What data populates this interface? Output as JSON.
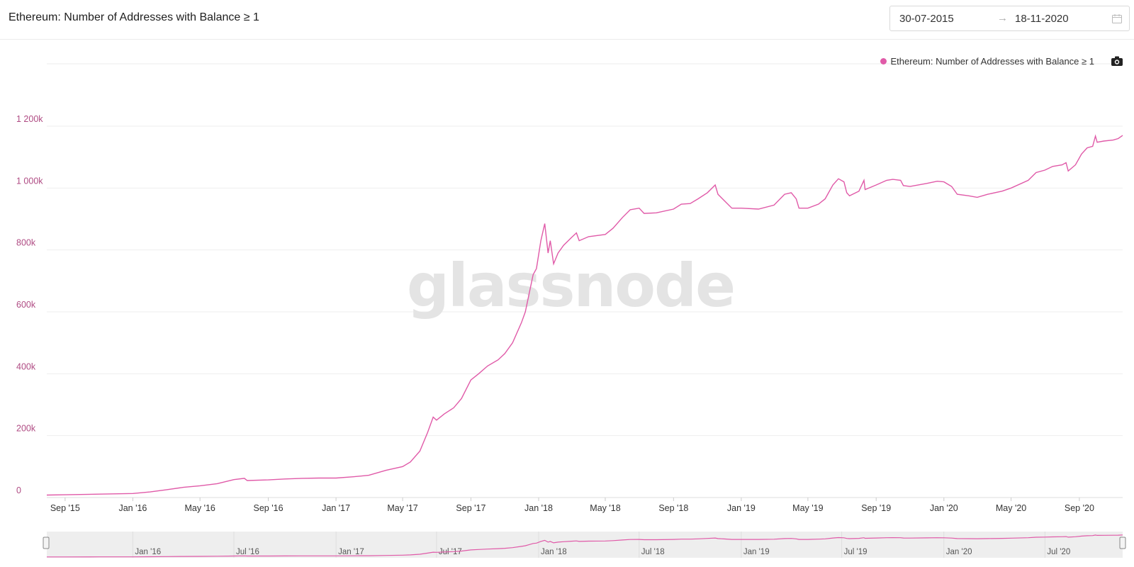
{
  "header": {
    "title": "Ethereum: Number of Addresses with Balance ≥ 1",
    "date_start": "30-07-2015",
    "date_end": "18-11-2020",
    "arrow": "→"
  },
  "legend": {
    "label": "Ethereum: Number of Addresses with Balance ≥ 1",
    "color": "#e05aa8"
  },
  "watermark": "glassnode",
  "icons": {
    "calendar": "calendar-icon",
    "camera": "camera-icon"
  },
  "chart_data": {
    "type": "line",
    "title": "Ethereum: Number of Addresses with Balance ≥ 1",
    "xlabel": "",
    "ylabel": "",
    "ylim": [
      0,
      1200000
    ],
    "grid": true,
    "legend_position": "top-right",
    "y_ticks": [
      {
        "value": 0,
        "label": "0"
      },
      {
        "value": 200000,
        "label": "200k"
      },
      {
        "value": 400000,
        "label": "400k"
      },
      {
        "value": 600000,
        "label": "600k"
      },
      {
        "value": 800000,
        "label": "800k"
      },
      {
        "value": 1000000,
        "label": "1 000k"
      },
      {
        "value": 1200000,
        "label": "1 200k"
      }
    ],
    "x_ticks": [
      {
        "date": "2015-09-01",
        "label": "Sep '15"
      },
      {
        "date": "2016-01-01",
        "label": "Jan '16"
      },
      {
        "date": "2016-05-01",
        "label": "May '16"
      },
      {
        "date": "2016-09-01",
        "label": "Sep '16"
      },
      {
        "date": "2017-01-01",
        "label": "Jan '17"
      },
      {
        "date": "2017-05-01",
        "label": "May '17"
      },
      {
        "date": "2017-09-01",
        "label": "Sep '17"
      },
      {
        "date": "2018-01-01",
        "label": "Jan '18"
      },
      {
        "date": "2018-05-01",
        "label": "May '18"
      },
      {
        "date": "2018-09-01",
        "label": "Sep '18"
      },
      {
        "date": "2019-01-01",
        "label": "Jan '19"
      },
      {
        "date": "2019-05-01",
        "label": "May '19"
      },
      {
        "date": "2019-09-01",
        "label": "Sep '19"
      },
      {
        "date": "2020-01-01",
        "label": "Jan '20"
      },
      {
        "date": "2020-05-01",
        "label": "May '20"
      },
      {
        "date": "2020-09-01",
        "label": "Sep '20"
      }
    ],
    "navigator_ticks": [
      {
        "date": "2016-01-01",
        "label": "Jan '16"
      },
      {
        "date": "2016-07-01",
        "label": "Jul '16"
      },
      {
        "date": "2017-01-01",
        "label": "Jan '17"
      },
      {
        "date": "2017-07-01",
        "label": "Jul '17"
      },
      {
        "date": "2018-01-01",
        "label": "Jan '18"
      },
      {
        "date": "2018-07-01",
        "label": "Jul '18"
      },
      {
        "date": "2019-01-01",
        "label": "Jan '19"
      },
      {
        "date": "2019-07-01",
        "label": "Jul '19"
      },
      {
        "date": "2020-01-01",
        "label": "Jan '20"
      },
      {
        "date": "2020-07-01",
        "label": "Jul '20"
      }
    ],
    "series": [
      {
        "name": "Ethereum: Number of Addresses with Balance ≥ 1",
        "color": "#e05aa8",
        "points": [
          [
            "2015-07-30",
            8000
          ],
          [
            "2015-09-01",
            9000
          ],
          [
            "2015-11-01",
            11000
          ],
          [
            "2016-01-01",
            13000
          ],
          [
            "2016-02-01",
            18000
          ],
          [
            "2016-03-01",
            25000
          ],
          [
            "2016-04-01",
            33000
          ],
          [
            "2016-05-01",
            38000
          ],
          [
            "2016-06-01",
            45000
          ],
          [
            "2016-07-01",
            58000
          ],
          [
            "2016-07-20",
            62000
          ],
          [
            "2016-07-25",
            55000
          ],
          [
            "2016-09-01",
            57000
          ],
          [
            "2016-10-01",
            60000
          ],
          [
            "2016-11-01",
            62000
          ],
          [
            "2016-12-01",
            63000
          ],
          [
            "2017-01-01",
            63000
          ],
          [
            "2017-02-01",
            67000
          ],
          [
            "2017-03-01",
            72000
          ],
          [
            "2017-04-01",
            88000
          ],
          [
            "2017-05-01",
            100000
          ],
          [
            "2017-05-15",
            115000
          ],
          [
            "2017-06-01",
            150000
          ],
          [
            "2017-06-15",
            210000
          ],
          [
            "2017-06-25",
            260000
          ],
          [
            "2017-07-01",
            250000
          ],
          [
            "2017-07-15",
            270000
          ],
          [
            "2017-08-01",
            290000
          ],
          [
            "2017-08-15",
            320000
          ],
          [
            "2017-09-01",
            380000
          ],
          [
            "2017-09-15",
            400000
          ],
          [
            "2017-10-01",
            425000
          ],
          [
            "2017-10-20",
            445000
          ],
          [
            "2017-11-01",
            465000
          ],
          [
            "2017-11-15",
            500000
          ],
          [
            "2017-12-01",
            565000
          ],
          [
            "2017-12-08",
            600000
          ],
          [
            "2017-12-15",
            660000
          ],
          [
            "2017-12-22",
            720000
          ],
          [
            "2017-12-28",
            740000
          ],
          [
            "2018-01-05",
            830000
          ],
          [
            "2018-01-12",
            885000
          ],
          [
            "2018-01-18",
            790000
          ],
          [
            "2018-01-22",
            830000
          ],
          [
            "2018-01-28",
            755000
          ],
          [
            "2018-02-05",
            790000
          ],
          [
            "2018-02-15",
            815000
          ],
          [
            "2018-03-01",
            840000
          ],
          [
            "2018-03-10",
            855000
          ],
          [
            "2018-03-15",
            830000
          ],
          [
            "2018-04-01",
            843000
          ],
          [
            "2018-05-01",
            850000
          ],
          [
            "2018-05-15",
            870000
          ],
          [
            "2018-06-01",
            905000
          ],
          [
            "2018-06-15",
            930000
          ],
          [
            "2018-07-01",
            935000
          ],
          [
            "2018-07-10",
            918000
          ],
          [
            "2018-08-01",
            920000
          ],
          [
            "2018-09-01",
            932000
          ],
          [
            "2018-09-15",
            948000
          ],
          [
            "2018-10-01",
            950000
          ],
          [
            "2018-10-15",
            965000
          ],
          [
            "2018-11-01",
            985000
          ],
          [
            "2018-11-15",
            1010000
          ],
          [
            "2018-11-20",
            980000
          ],
          [
            "2018-12-01",
            960000
          ],
          [
            "2018-12-15",
            935000
          ],
          [
            "2019-01-01",
            935000
          ],
          [
            "2019-02-01",
            932000
          ],
          [
            "2019-03-01",
            945000
          ],
          [
            "2019-03-20",
            980000
          ],
          [
            "2019-04-01",
            985000
          ],
          [
            "2019-04-10",
            965000
          ],
          [
            "2019-04-15",
            935000
          ],
          [
            "2019-05-01",
            935000
          ],
          [
            "2019-05-20",
            948000
          ],
          [
            "2019-06-01",
            965000
          ],
          [
            "2019-06-15",
            1010000
          ],
          [
            "2019-06-25",
            1030000
          ],
          [
            "2019-07-05",
            1020000
          ],
          [
            "2019-07-10",
            985000
          ],
          [
            "2019-07-15",
            975000
          ],
          [
            "2019-08-01",
            990000
          ],
          [
            "2019-08-10",
            1025000
          ],
          [
            "2019-08-12",
            995000
          ],
          [
            "2019-09-01",
            1010000
          ],
          [
            "2019-09-20",
            1025000
          ],
          [
            "2019-10-01",
            1028000
          ],
          [
            "2019-10-15",
            1025000
          ],
          [
            "2019-10-20",
            1008000
          ],
          [
            "2019-11-01",
            1005000
          ],
          [
            "2019-12-01",
            1015000
          ],
          [
            "2019-12-20",
            1022000
          ],
          [
            "2020-01-01",
            1020000
          ],
          [
            "2020-01-15",
            1005000
          ],
          [
            "2020-01-25",
            980000
          ],
          [
            "2020-02-15",
            975000
          ],
          [
            "2020-03-01",
            970000
          ],
          [
            "2020-03-20",
            980000
          ],
          [
            "2020-04-15",
            990000
          ],
          [
            "2020-05-01",
            1000000
          ],
          [
            "2020-06-01",
            1025000
          ],
          [
            "2020-06-15",
            1050000
          ],
          [
            "2020-07-01",
            1058000
          ],
          [
            "2020-07-15",
            1070000
          ],
          [
            "2020-08-01",
            1075000
          ],
          [
            "2020-08-08",
            1082000
          ],
          [
            "2020-08-12",
            1055000
          ],
          [
            "2020-08-25",
            1075000
          ],
          [
            "2020-09-05",
            1110000
          ],
          [
            "2020-09-15",
            1130000
          ],
          [
            "2020-09-25",
            1135000
          ],
          [
            "2020-09-30",
            1168000
          ],
          [
            "2020-10-03",
            1148000
          ],
          [
            "2020-10-15",
            1152000
          ],
          [
            "2020-11-01",
            1155000
          ],
          [
            "2020-11-10",
            1160000
          ],
          [
            "2020-11-18",
            1170000
          ]
        ]
      }
    ]
  }
}
